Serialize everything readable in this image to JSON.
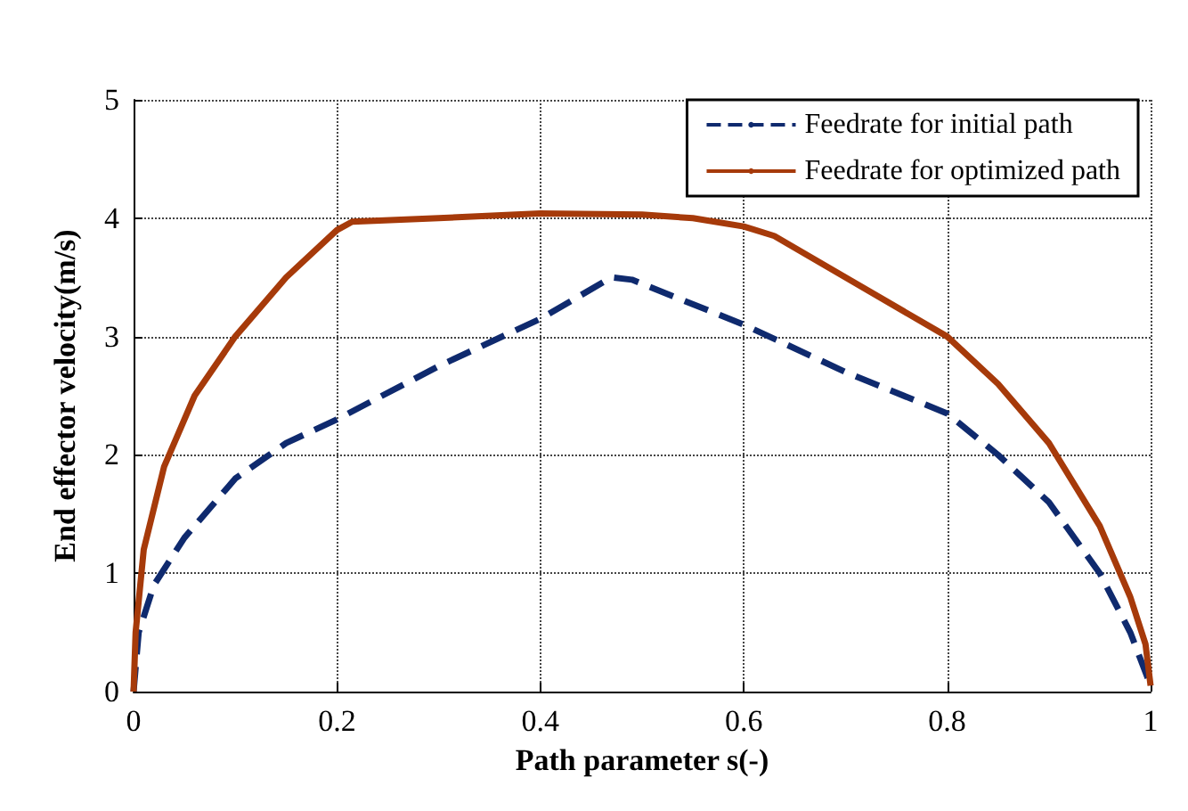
{
  "chart_data": {
    "type": "line",
    "xlabel": "Path parameter s(-)",
    "ylabel": "End effector velocity(m/s)",
    "xlim": [
      0,
      1
    ],
    "ylim": [
      0,
      5
    ],
    "xticks": [
      0,
      0.2,
      0.4,
      0.6,
      0.8,
      1
    ],
    "yticks": [
      0,
      1,
      2,
      3,
      4,
      5
    ],
    "grid": true,
    "legend": "top right",
    "marker": "none",
    "series": [
      {
        "name": "Feedrate for initial path",
        "color": "#0f2a6e",
        "line_style": "dashed",
        "x": [
          0,
          0.005,
          0.02,
          0.05,
          0.1,
          0.15,
          0.2,
          0.3,
          0.4,
          0.47,
          0.49,
          0.6,
          0.7,
          0.8,
          0.85,
          0.9,
          0.95,
          0.98,
          1
        ],
        "values": [
          0,
          0.5,
          0.9,
          1.3,
          1.8,
          2.1,
          2.3,
          2.75,
          3.15,
          3.5,
          3.48,
          3.1,
          2.7,
          2.35,
          2.0,
          1.6,
          1.0,
          0.5,
          0.05
        ]
      },
      {
        "name": "Feedrate for optimized path",
        "color": "#a63a0a",
        "line_style": "solid",
        "x": [
          0,
          0.002,
          0.01,
          0.03,
          0.06,
          0.1,
          0.15,
          0.2,
          0.215,
          0.3,
          0.4,
          0.5,
          0.55,
          0.6,
          0.63,
          0.7,
          0.8,
          0.85,
          0.9,
          0.95,
          0.98,
          0.995,
          1
        ],
        "values": [
          0,
          0.5,
          1.2,
          1.9,
          2.5,
          3.0,
          3.5,
          3.9,
          3.97,
          4.0,
          4.04,
          4.03,
          4.0,
          3.93,
          3.85,
          3.5,
          3.0,
          2.6,
          2.1,
          1.4,
          0.8,
          0.4,
          0.05
        ]
      }
    ]
  }
}
